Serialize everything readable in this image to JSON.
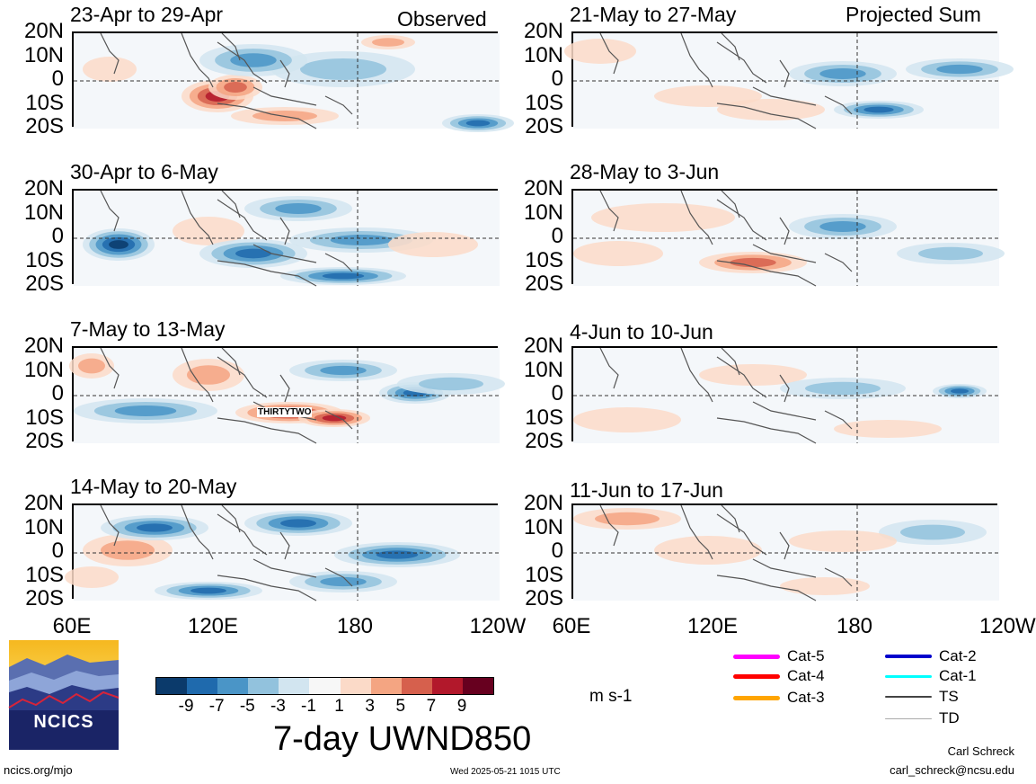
{
  "panels_left_header": "Observed",
  "panels_right_header": "Projected Sum",
  "panels_left": [
    {
      "title": "23-Apr to 29-Apr"
    },
    {
      "title": "30-Apr to 6-May"
    },
    {
      "title": "7-May to 13-May",
      "storm_label": "THIRTYTWO"
    },
    {
      "title": "14-May to 20-May"
    }
  ],
  "panels_right": [
    {
      "title": "21-May to 27-May"
    },
    {
      "title": "28-May to 3-Jun"
    },
    {
      "title": "4-Jun to 10-Jun"
    },
    {
      "title": "11-Jun to 17-Jun"
    }
  ],
  "lat_labels": [
    "20N",
    "10N",
    "0",
    "10S",
    "20S"
  ],
  "lon_labels_left": [
    "60E",
    "120E",
    "180",
    "120W"
  ],
  "lon_labels_right": [
    "60E",
    "120E",
    "180",
    "120W"
  ],
  "colorbar": {
    "colors": [
      "#0b3a6b",
      "#1f6aad",
      "#4a95c7",
      "#92c2dd",
      "#d2e5f0",
      "#f7f7f7",
      "#fbdac8",
      "#f4a582",
      "#d6604d",
      "#b2182b",
      "#67001f"
    ],
    "ticks": [
      "-9",
      "-7",
      "-5",
      "-3",
      "-1",
      "1",
      "3",
      "5",
      "7",
      "9"
    ],
    "units": "m s-1",
    "title": "7-day UWND850"
  },
  "legend": [
    {
      "label": "Cat-5",
      "color": "#ff00ff"
    },
    {
      "label": "Cat-4",
      "color": "#ff0000"
    },
    {
      "label": "Cat-3",
      "color": "#ffa500"
    },
    {
      "label": "Cat-2",
      "color": "#0000cc"
    },
    {
      "label": "Cat-1",
      "color": "#00ffff"
    },
    {
      "label": "TS",
      "color": "#444444"
    },
    {
      "label": "TD",
      "color": "#aaaaaa"
    }
  ],
  "logo": {
    "text": "NCICS"
  },
  "footer": {
    "url": "ncics.org/mjo",
    "timestamp": "Wed 2025-05-21 1015 UTC",
    "author": "Carl Schreck",
    "email": "carl_schreck@ncsu.edu"
  }
}
